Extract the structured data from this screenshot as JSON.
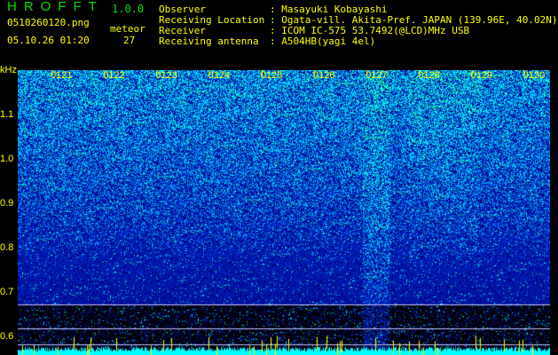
{
  "header": {
    "app_name": "HROFFT",
    "version": "1.0.0",
    "filename": "0510260120.png",
    "datetime": "05.10.26 01:20",
    "meteor_label": "meteor",
    "meteor_count": "27"
  },
  "info": [
    {
      "label": "Observer",
      "value": ": Masayuki Kobayashi"
    },
    {
      "label": "Receiving Location",
      "value": ": Ogata-vill. Akita-Pref. JAPAN (139.96E, 40.02N)"
    },
    {
      "label": "Receiver",
      "value": ": ICOM IC-575 53.7492(@LCD)MHz USB"
    },
    {
      "label": "Receiving antenna",
      "value": ": A504HB(yagi 4el)"
    }
  ],
  "spectrogram": {
    "y_unit": "kHz",
    "y_ticks": [
      "1.1",
      "1.0",
      "0.9",
      "0.8",
      "0.7",
      "0.6"
    ],
    "x_ticks": [
      "0121",
      "0122",
      "0123",
      "0124",
      "0125",
      "0126",
      "0127",
      "0128",
      "0129",
      "0130"
    ],
    "colors": {
      "text": "#ffff00",
      "title": "#00e000",
      "noise_low": "#0000a0",
      "noise_high": "#00ff80",
      "baseline": "#00ffff"
    }
  }
}
